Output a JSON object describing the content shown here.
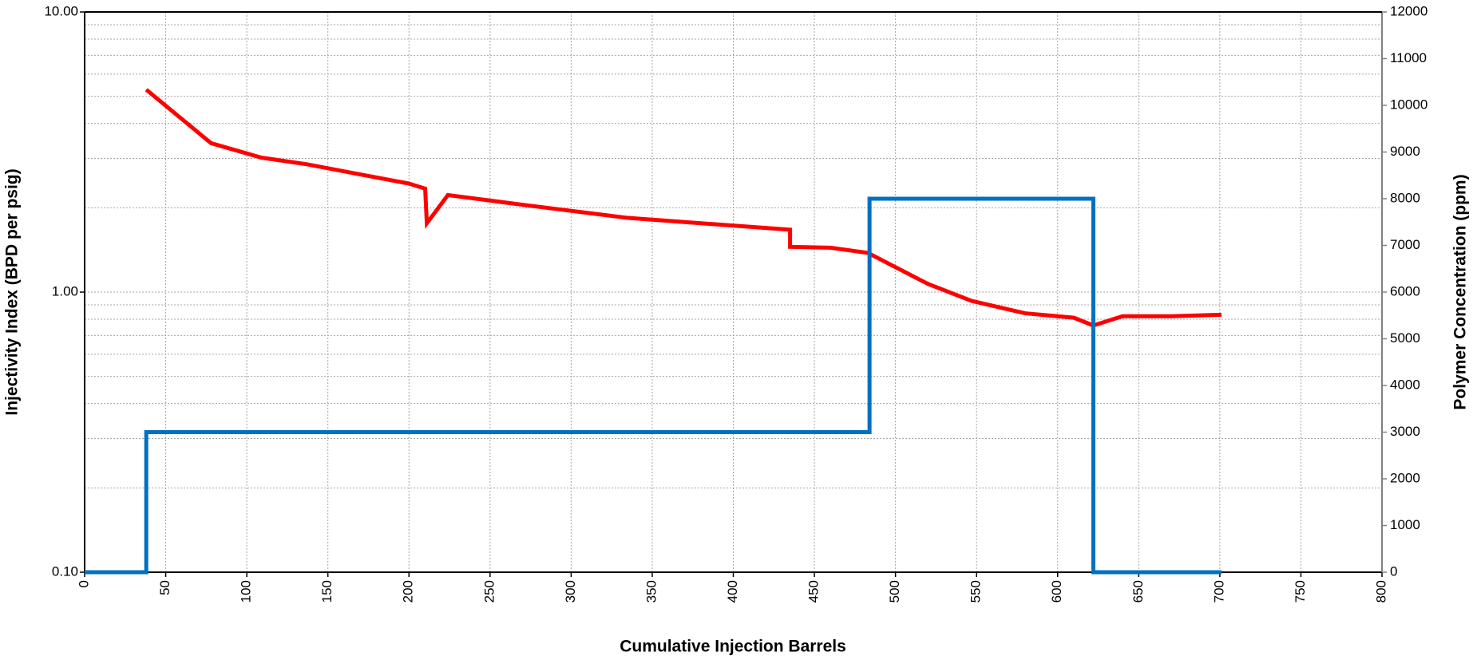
{
  "chart_data": {
    "type": "line",
    "xlabel": "Cumulative Injection Barrels",
    "ylabel": "Injectivity Index (BPD per psig)",
    "y2label": "Polymer Concentration (ppm)",
    "xlim": [
      0,
      800
    ],
    "xticks": [
      0,
      50,
      100,
      150,
      200,
      250,
      300,
      350,
      400,
      450,
      500,
      550,
      600,
      650,
      700,
      750,
      800
    ],
    "ylim": [
      0.1,
      10
    ],
    "yscale": "log",
    "yticks": [
      {
        "value": 0.1,
        "label": "0.10"
      },
      {
        "value": 1,
        "label": "1.00"
      },
      {
        "value": 10,
        "label": "10.00"
      }
    ],
    "y2lim": [
      0,
      12000
    ],
    "y2ticks": [
      0,
      1000,
      2000,
      3000,
      4000,
      5000,
      6000,
      7000,
      8000,
      9000,
      10000,
      11000,
      12000
    ],
    "grid": true,
    "series": [
      {
        "color": "#ff0000",
        "axis": "y",
        "x": [
          38,
          78,
          109,
          137,
          170,
          200,
          210,
          211,
          224,
          270,
          335,
          435,
          435,
          460,
          483,
          520,
          547,
          580,
          610,
          622,
          640,
          670,
          701
        ],
        "values": [
          5.28,
          3.4,
          3.02,
          2.86,
          2.63,
          2.44,
          2.34,
          1.76,
          2.22,
          2.05,
          1.84,
          1.67,
          1.45,
          1.44,
          1.38,
          1.07,
          0.93,
          0.84,
          0.81,
          0.76,
          0.82,
          0.82,
          0.83
        ]
      },
      {
        "color": "#0070c0",
        "axis": "y2",
        "x": [
          0,
          38,
          38,
          484,
          484,
          622,
          622,
          701
        ],
        "values": [
          0,
          0,
          3000,
          3000,
          8000,
          8000,
          0,
          0
        ]
      }
    ]
  }
}
